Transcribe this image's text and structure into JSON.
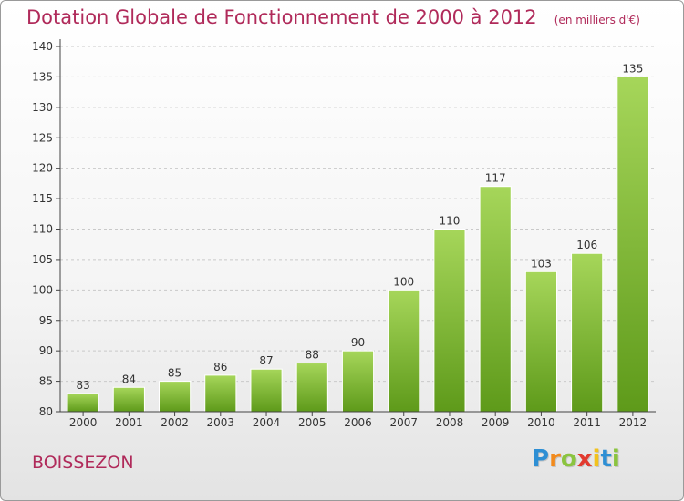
{
  "header": {
    "title": "Dotation Globale de Fonctionnement de 2000 à 2012",
    "subtitle": "(en milliers d'€)"
  },
  "commune": "BOISSEZON",
  "logo": {
    "text": "Proxiti",
    "letters": [
      "P",
      "r",
      "o",
      "x",
      "i",
      "t",
      "i"
    ],
    "colors": [
      "#2e8fd4",
      "#f28a1c",
      "#8bc43f",
      "#e23a2f",
      "#f2c21c",
      "#2e8fd4",
      "#8bc43f"
    ]
  },
  "colors": {
    "accent": "#b02a5a",
    "bar_light": "#a6d65a",
    "bar_dark": "#5e9a1a",
    "grid": "#c9c9c9",
    "axis": "#444444"
  },
  "chart_data": {
    "type": "bar",
    "title": "Dotation Globale de Fonctionnement de 2000 à 2012",
    "subtitle": "(en milliers d'€)",
    "categories": [
      "2000",
      "2001",
      "2002",
      "2003",
      "2004",
      "2005",
      "2006",
      "2007",
      "2008",
      "2009",
      "2010",
      "2011",
      "2012"
    ],
    "values": [
      83,
      84,
      85,
      86,
      87,
      88,
      90,
      100,
      110,
      117,
      103,
      106,
      135
    ],
    "ylim": [
      80,
      140
    ],
    "yticks": [
      80,
      85,
      90,
      95,
      100,
      105,
      110,
      115,
      120,
      125,
      130,
      135,
      140
    ],
    "grid": "horizontal dashed",
    "legend": "none"
  }
}
